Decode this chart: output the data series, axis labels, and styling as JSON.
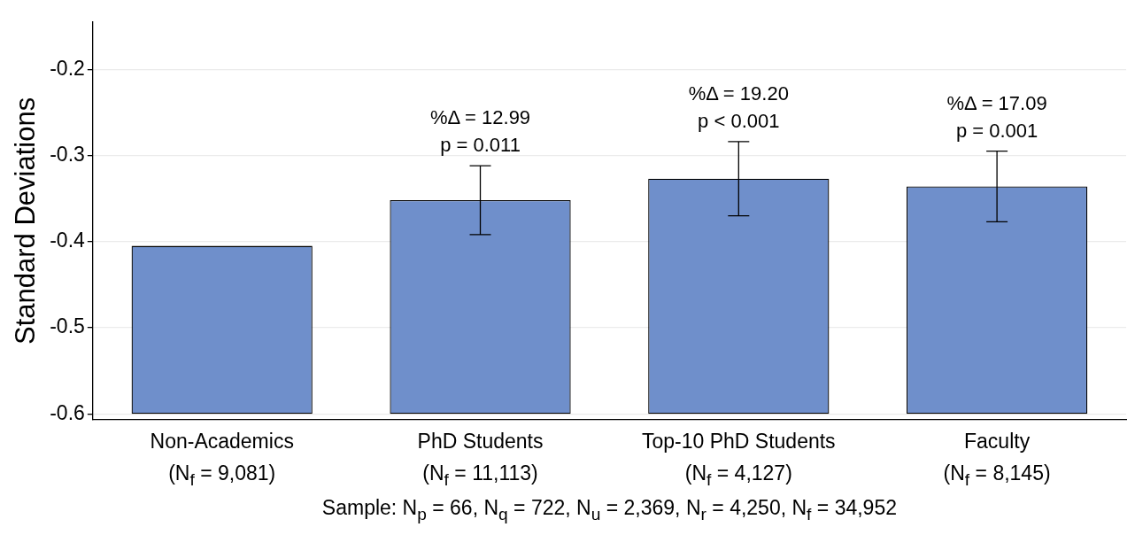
{
  "chart_data": {
    "type": "bar",
    "ylabel": "Standard Deviations",
    "categories": [
      "Non-Academics\n(N$_{f}$ = 9,081)",
      "PhD Students\n(N$_{f}$ = 11,113)",
      "Top-10 PhD Students\n(N$_{f}$ = 4,127)",
      "Faculty\n(N$_{f}$ = 8,145)"
    ],
    "base": [
      -0.6,
      -0.6,
      -0.6,
      -0.6
    ],
    "values": [
      0.195,
      0.248,
      0.273,
      0.264
    ],
    "errors": [
      null,
      0.04,
      0.043,
      0.041
    ],
    "color": "#6f8fcb",
    "ylim": [
      -0.607,
      -0.145
    ],
    "yticks": [
      -0.6,
      -0.5,
      -0.4,
      -0.3,
      -0.2
    ],
    "grid": "y",
    "annotations": [
      "%Δ = 12.99\np = 0.011",
      "%Δ = 19.20\np < 0.001",
      "%Δ = 17.09\np = 0.001",
      "Sample: N$_{p}$ = 66, N$_{q}$ = 722, N$_{u}$ = 2,369, N$_{r}$ = 4,250, N$_{f}$ = 34,952"
    ]
  }
}
